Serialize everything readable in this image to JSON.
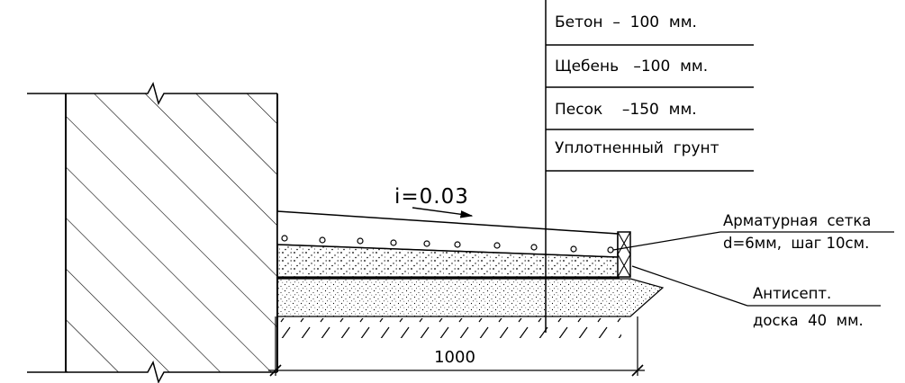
{
  "layers_table": {
    "rows": [
      "Бетон  –  100  мм.",
      "Щебень   –100  мм.",
      "Песок    –150  мм.",
      "Уплотненный  грунт"
    ]
  },
  "slope_label": "i=0.03",
  "callouts": {
    "mesh_line1": "Арматурная  сетка",
    "mesh_line2": "d=6мм,  шаг 10см.",
    "board_line1": "Антисепт.",
    "board_line2": "доска  40  мм."
  },
  "dimension": {
    "value": "1000"
  }
}
